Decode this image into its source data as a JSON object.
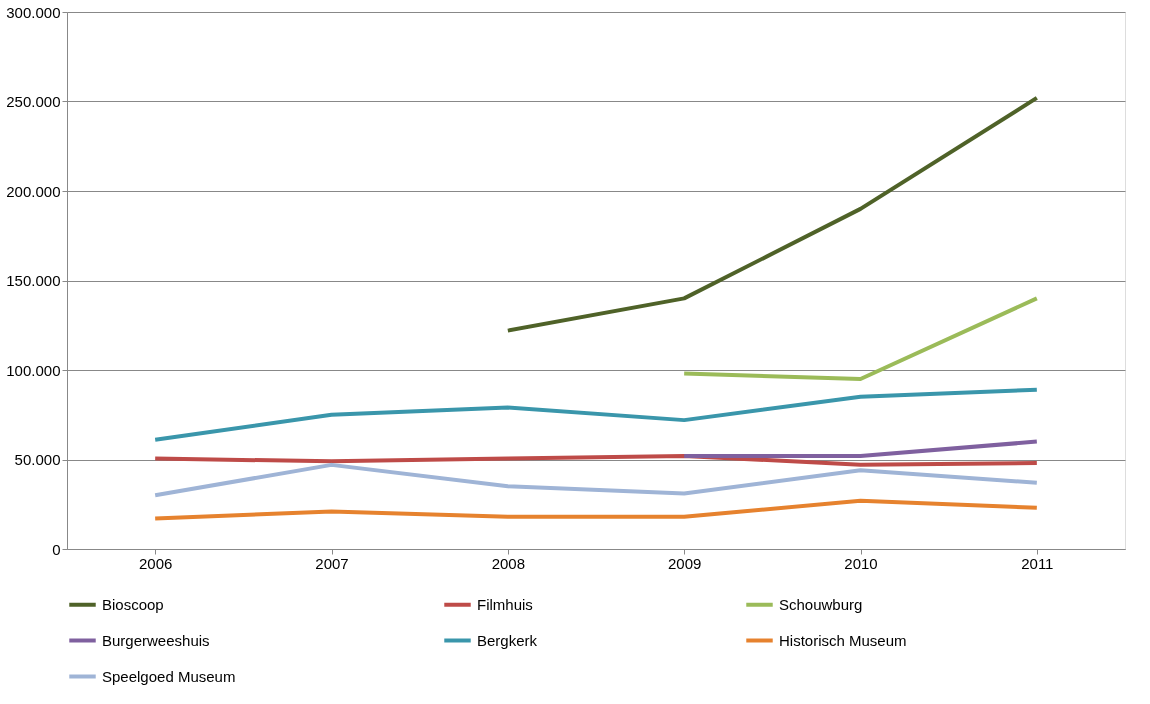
{
  "chart_data": {
    "type": "line",
    "categories": [
      "2006",
      "2007",
      "2008",
      "2009",
      "2010",
      "2011"
    ],
    "series": [
      {
        "name": "Bioscoop",
        "color": "#4f6228",
        "values": [
          null,
          null,
          122000,
          140000,
          190000,
          252000
        ]
      },
      {
        "name": "Filmhuis",
        "color": "#be4b48",
        "values": [
          50500,
          49000,
          50500,
          52000,
          47000,
          48000
        ]
      },
      {
        "name": "Schouwburg",
        "color": "#9bbb59",
        "values": [
          null,
          null,
          null,
          98000,
          95000,
          140000
        ]
      },
      {
        "name": "Burgerweeshuis",
        "color": "#7f609f",
        "values": [
          null,
          null,
          null,
          52000,
          52000,
          60000
        ]
      },
      {
        "name": "Bergkerk",
        "color": "#3a96ab",
        "values": [
          61000,
          75000,
          79000,
          72000,
          85000,
          89000
        ]
      },
      {
        "name": "Historisch Museum",
        "color": "#e6822e",
        "values": [
          17000,
          21000,
          18000,
          18000,
          27000,
          23000
        ]
      },
      {
        "name": "Speelgoed Museum",
        "color": "#9fb4d6",
        "values": [
          30000,
          47000,
          35000,
          31000,
          44000,
          37000
        ]
      }
    ],
    "ylim": [
      0,
      300000
    ],
    "yticks": [
      {
        "value": 0,
        "label": "0"
      },
      {
        "value": 50000,
        "label": "50.000"
      },
      {
        "value": 100000,
        "label": "100.000"
      },
      {
        "value": 150000,
        "label": "150.000"
      },
      {
        "value": 200000,
        "label": "200.000"
      },
      {
        "value": 250000,
        "label": "250.000"
      },
      {
        "value": 300000,
        "label": "300.000"
      }
    ],
    "grid": "y",
    "legend": "bottom",
    "marker": "none",
    "line_style": "solid"
  }
}
